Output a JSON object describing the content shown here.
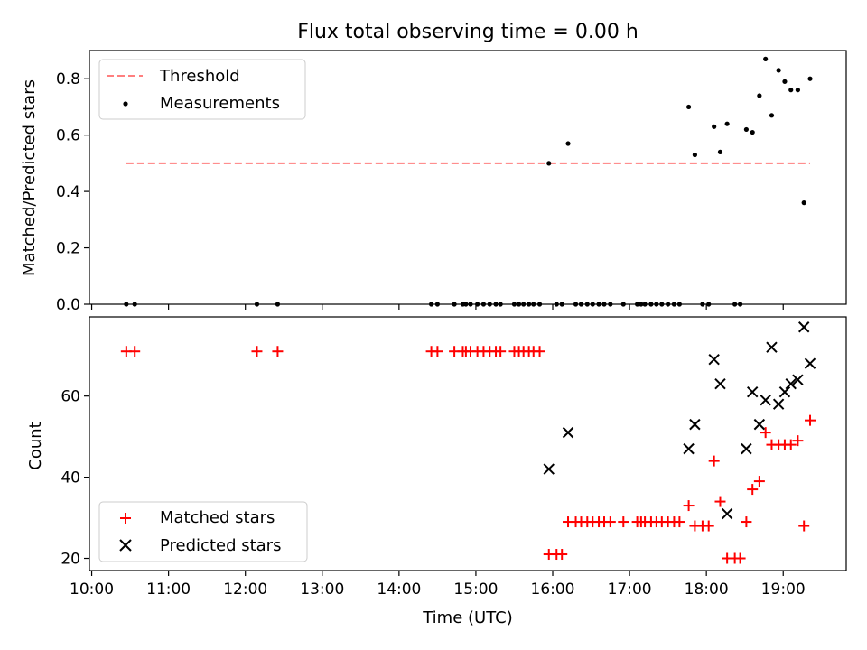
{
  "chart_data": [
    {
      "type": "scatter",
      "title": "Flux total observing time = 0.00 h",
      "ylabel": "Matched/Predicted stars",
      "xlim": [
        9.97,
        19.82
      ],
      "ylim": [
        0,
        0.9
      ],
      "yticks": [
        0.0,
        0.2,
        0.4,
        0.6,
        0.8
      ],
      "ytick_labels": [
        "0.0",
        "0.2",
        "0.4",
        "0.6",
        "0.8"
      ],
      "legend_position": "top-left",
      "threshold": {
        "name": "Threshold",
        "x": [
          10.45,
          19.35
        ],
        "y": 0.5,
        "color": "#ff7f7f",
        "style": "dashed"
      },
      "series": [
        {
          "name": "Measurements",
          "marker": "dot",
          "color": "#000000",
          "points": [
            [
              10.45,
              0
            ],
            [
              10.56,
              0
            ],
            [
              12.15,
              0
            ],
            [
              12.42,
              0
            ],
            [
              14.42,
              0
            ],
            [
              14.5,
              0
            ],
            [
              14.72,
              0
            ],
            [
              14.83,
              0
            ],
            [
              14.87,
              0
            ],
            [
              14.93,
              0
            ],
            [
              15.02,
              0
            ],
            [
              15.1,
              0
            ],
            [
              15.18,
              0
            ],
            [
              15.26,
              0
            ],
            [
              15.32,
              0
            ],
            [
              15.5,
              0
            ],
            [
              15.56,
              0
            ],
            [
              15.62,
              0
            ],
            [
              15.69,
              0
            ],
            [
              15.75,
              0
            ],
            [
              15.83,
              0
            ],
            [
              15.95,
              0.5
            ],
            [
              16.05,
              0
            ],
            [
              16.12,
              0
            ],
            [
              16.2,
              0.57
            ],
            [
              16.3,
              0
            ],
            [
              16.37,
              0
            ],
            [
              16.45,
              0
            ],
            [
              16.52,
              0
            ],
            [
              16.6,
              0
            ],
            [
              16.67,
              0
            ],
            [
              16.75,
              0
            ],
            [
              16.92,
              0
            ],
            [
              17.1,
              0
            ],
            [
              17.15,
              0
            ],
            [
              17.2,
              0
            ],
            [
              17.28,
              0
            ],
            [
              17.35,
              0
            ],
            [
              17.42,
              0
            ],
            [
              17.5,
              0
            ],
            [
              17.58,
              0
            ],
            [
              17.65,
              0
            ],
            [
              17.77,
              0.7
            ],
            [
              17.85,
              0.53
            ],
            [
              17.95,
              0
            ],
            [
              18.03,
              0
            ],
            [
              18.1,
              0.63
            ],
            [
              18.18,
              0.54
            ],
            [
              18.27,
              0.64
            ],
            [
              18.37,
              0
            ],
            [
              18.44,
              0
            ],
            [
              18.52,
              0.62
            ],
            [
              18.6,
              0.61
            ],
            [
              18.69,
              0.74
            ],
            [
              18.77,
              0.87
            ],
            [
              18.85,
              0.67
            ],
            [
              18.94,
              0.83
            ],
            [
              19.02,
              0.79
            ],
            [
              19.1,
              0.76
            ],
            [
              19.19,
              0.76
            ],
            [
              19.27,
              0.36
            ],
            [
              19.35,
              0.8
            ]
          ]
        }
      ]
    },
    {
      "type": "scatter",
      "xlabel": "Time (UTC)",
      "ylabel": "Count",
      "xlim": [
        9.97,
        19.82
      ],
      "ylim": [
        17,
        79.5
      ],
      "yticks": [
        20,
        40,
        60
      ],
      "ytick_labels": [
        "20",
        "40",
        "60"
      ],
      "xticks": [
        10,
        11,
        12,
        13,
        14,
        15,
        16,
        17,
        18,
        19
      ],
      "xtick_labels": [
        "10:00",
        "11:00",
        "12:00",
        "13:00",
        "14:00",
        "15:00",
        "16:00",
        "17:00",
        "18:00",
        "19:00"
      ],
      "legend_position": "bottom-left",
      "series": [
        {
          "name": "Matched stars",
          "marker": "plus",
          "color": "#ff0000",
          "points": [
            [
              10.45,
              71
            ],
            [
              10.56,
              71
            ],
            [
              12.15,
              71
            ],
            [
              12.42,
              71
            ],
            [
              14.42,
              71
            ],
            [
              14.5,
              71
            ],
            [
              14.72,
              71
            ],
            [
              14.83,
              71
            ],
            [
              14.87,
              71
            ],
            [
              14.93,
              71
            ],
            [
              15.02,
              71
            ],
            [
              15.1,
              71
            ],
            [
              15.18,
              71
            ],
            [
              15.26,
              71
            ],
            [
              15.32,
              71
            ],
            [
              15.5,
              71
            ],
            [
              15.56,
              71
            ],
            [
              15.62,
              71
            ],
            [
              15.69,
              71
            ],
            [
              15.75,
              71
            ],
            [
              15.83,
              71
            ],
            [
              15.95,
              21
            ],
            [
              16.05,
              21
            ],
            [
              16.12,
              21
            ],
            [
              16.2,
              29
            ],
            [
              16.3,
              29
            ],
            [
              16.37,
              29
            ],
            [
              16.45,
              29
            ],
            [
              16.52,
              29
            ],
            [
              16.6,
              29
            ],
            [
              16.67,
              29
            ],
            [
              16.75,
              29
            ],
            [
              16.92,
              29
            ],
            [
              17.1,
              29
            ],
            [
              17.15,
              29
            ],
            [
              17.2,
              29
            ],
            [
              17.28,
              29
            ],
            [
              17.35,
              29
            ],
            [
              17.42,
              29
            ],
            [
              17.5,
              29
            ],
            [
              17.58,
              29
            ],
            [
              17.65,
              29
            ],
            [
              17.77,
              33
            ],
            [
              17.85,
              28
            ],
            [
              17.95,
              28
            ],
            [
              18.03,
              28
            ],
            [
              18.1,
              44
            ],
            [
              18.18,
              34
            ],
            [
              18.27,
              20
            ],
            [
              18.37,
              20
            ],
            [
              18.44,
              20
            ],
            [
              18.52,
              29
            ],
            [
              18.6,
              37
            ],
            [
              18.69,
              39
            ],
            [
              18.77,
              51
            ],
            [
              18.85,
              48
            ],
            [
              18.94,
              48
            ],
            [
              19.02,
              48
            ],
            [
              19.1,
              48
            ],
            [
              19.19,
              49
            ],
            [
              19.27,
              28
            ],
            [
              19.35,
              54
            ]
          ]
        },
        {
          "name": "Predicted stars",
          "marker": "x",
          "color": "#000000",
          "points": [
            [
              15.95,
              42
            ],
            [
              16.2,
              51
            ],
            [
              17.77,
              47
            ],
            [
              17.85,
              53
            ],
            [
              18.1,
              69
            ],
            [
              18.18,
              63
            ],
            [
              18.27,
              31
            ],
            [
              18.52,
              47
            ],
            [
              18.6,
              61
            ],
            [
              18.69,
              53
            ],
            [
              18.77,
              59
            ],
            [
              18.85,
              72
            ],
            [
              18.94,
              58
            ],
            [
              19.02,
              61
            ],
            [
              19.1,
              63
            ],
            [
              19.19,
              64
            ],
            [
              19.27,
              77
            ],
            [
              19.35,
              68
            ]
          ]
        }
      ]
    }
  ]
}
